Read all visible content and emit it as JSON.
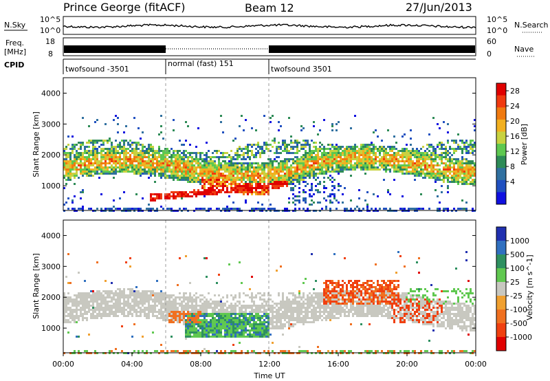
{
  "header": {
    "title": "Prince George (fitACF)",
    "beam": "Beam 12",
    "date": "27/Jun/2013"
  },
  "nsky_panel": {
    "left_label": "N.Sky",
    "right_label": "N.Search",
    "left_ticks": [
      "10^5",
      "10^0"
    ],
    "right_ticks": [
      "10^5",
      "10^0"
    ]
  },
  "freq_panel": {
    "left_label_line1": "Freq.",
    "left_label_line2": "[MHz]",
    "right_label": "Nave",
    "left_ticks": [
      "18",
      "8"
    ],
    "right_ticks": [
      "60",
      "0"
    ]
  },
  "cpid_panel": {
    "label": "CPID",
    "segments": [
      {
        "start_hour": 0,
        "end_hour": 6,
        "text": "twofsound -3501"
      },
      {
        "start_hour": 6,
        "end_hour": 12,
        "text": "normal (fast) 151"
      },
      {
        "start_hour": 12,
        "end_hour": 24,
        "text": "twofsound 3501"
      }
    ]
  },
  "chart_data": [
    {
      "type": "heatmap",
      "name": "power",
      "ylabel": "Slant Range [km]",
      "yticks": [
        "1000",
        "2000",
        "3000",
        "4000"
      ],
      "ylim": [
        200,
        4500
      ],
      "colorbar": {
        "label": "Power [dB]",
        "ticks": [
          "4",
          "8",
          "12",
          "16",
          "20",
          "24",
          "28"
        ],
        "colors": [
          "#1010e0",
          "#2050c0",
          "#3070a0",
          "#2e8b57",
          "#5ec850",
          "#c8d240",
          "#f2b020",
          "#f07a10",
          "#f03a10",
          "#e00000"
        ]
      }
    },
    {
      "type": "heatmap",
      "name": "velocity",
      "ylabel": "Slant Range [km]",
      "yticks": [
        "1000",
        "2000",
        "3000",
        "4000"
      ],
      "ylim": [
        200,
        4500
      ],
      "colorbar": {
        "label": "Velocity [m s^-1]",
        "ticks": [
          "1000",
          "500",
          "100",
          "25",
          "-25",
          "-100",
          "-500",
          "-1000"
        ],
        "colors": [
          "#2030b0",
          "#3070c0",
          "#2e9060",
          "#60c850",
          "#c8c8c0",
          "#f0a030",
          "#f07020",
          "#f04010",
          "#e00000"
        ]
      }
    }
  ],
  "time_axis": {
    "label": "Time UT",
    "ticks": [
      "00:00",
      "04:00",
      "08:00",
      "12:00",
      "16:00",
      "20:00",
      "00:00"
    ]
  }
}
